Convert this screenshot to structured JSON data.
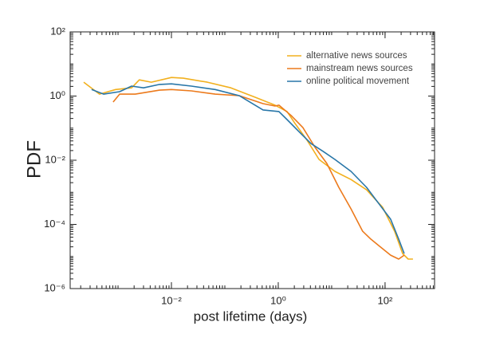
{
  "chart_data": {
    "type": "line",
    "xlabel": "post lifetime (days)",
    "ylabel": "PDF",
    "xscale": "log",
    "yscale": "log",
    "legend": "upper right",
    "xlim": [
      0.000127,
      845
    ],
    "ylim": [
      1e-06,
      100
    ],
    "xticks": [
      {
        "value": 0.01,
        "label": "10⁻²"
      },
      {
        "value": 1,
        "label": "10⁰"
      },
      {
        "value": 100,
        "label": "10²"
      }
    ],
    "yticks": [
      {
        "value": 1e-06,
        "label": "10⁻⁶"
      },
      {
        "value": 0.0001,
        "label": "10⁻⁴"
      },
      {
        "value": 0.01,
        "label": "10⁻²"
      },
      {
        "value": 1,
        "label": "10⁰"
      },
      {
        "value": 100,
        "label": "10²"
      }
    ],
    "series": [
      {
        "name": "alternative news sources",
        "color": "#f2b01e",
        "x": [
          0.000228,
          0.00045,
          0.0009,
          0.0018,
          0.0025,
          0.0042,
          0.01,
          0.0167,
          0.047,
          0.13,
          0.37,
          0.87,
          1.46,
          2.06,
          3.4,
          5.8,
          11.5,
          23,
          45,
          90,
          151,
          213,
          271,
          333
        ],
        "values": [
          2.7,
          1.15,
          1.6,
          1.8,
          3.2,
          2.7,
          3.8,
          3.6,
          2.7,
          1.8,
          0.92,
          0.52,
          0.33,
          0.14,
          0.044,
          0.0106,
          0.0045,
          0.0025,
          0.0012,
          0.00034,
          6.1e-05,
          1.24e-05,
          8.3e-06,
          8.3e-06
        ]
      },
      {
        "name": "mainstream news sources",
        "color": "#ec7a1c",
        "x": [
          0.00081,
          0.00107,
          0.0021,
          0.006,
          0.01,
          0.0236,
          0.066,
          0.186,
          0.52,
          0.87,
          1.03,
          1.73,
          2.9,
          4.9,
          8.1,
          13.6,
          23,
          38,
          54,
          76,
          127,
          180,
          228
        ],
        "values": [
          0.65,
          1.15,
          1.15,
          1.53,
          1.6,
          1.45,
          1.15,
          1.03,
          0.58,
          0.49,
          0.52,
          0.25,
          0.104,
          0.025,
          0.008,
          0.00143,
          0.000305,
          6.1e-05,
          3.5e-05,
          2.2e-05,
          1.1e-05,
          8.3e-06,
          1.1e-05
        ]
      },
      {
        "name": "online political movement",
        "color": "#2876a8",
        "x": [
          0.00032,
          0.00054,
          0.00107,
          0.0018,
          0.003,
          0.006,
          0.01,
          0.0236,
          0.066,
          0.186,
          0.52,
          1.03,
          1.46,
          2.44,
          4.1,
          6.9,
          11.5,
          23,
          45,
          76,
          127,
          180,
          228
        ],
        "values": [
          1.6,
          1.15,
          1.37,
          2.05,
          1.8,
          2.3,
          2.4,
          2.05,
          1.6,
          1.03,
          0.37,
          0.33,
          0.185,
          0.078,
          0.033,
          0.019,
          0.0106,
          0.0045,
          0.00143,
          0.00045,
          0.000145,
          3.5e-05,
          1.24e-05
        ]
      }
    ]
  }
}
